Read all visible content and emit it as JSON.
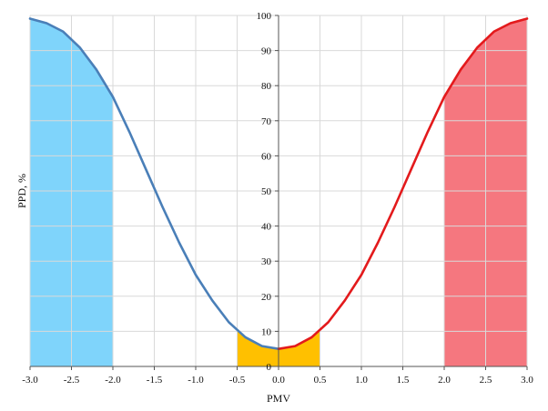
{
  "chart_data": {
    "type": "line",
    "title": "",
    "xlabel": "PMV",
    "ylabel": "PPD, %",
    "xlim": [
      -3.0,
      3.0
    ],
    "ylim": [
      0,
      100
    ],
    "x_ticks": [
      "-3.0",
      "-2.5",
      "-2.0",
      "-1.5",
      "-1.0",
      "-0.5",
      "0.0",
      "0.5",
      "1.0",
      "1.5",
      "2.0",
      "2.5",
      "3.0"
    ],
    "y_ticks": [
      "0",
      "10",
      "20",
      "30",
      "40",
      "50",
      "60",
      "70",
      "80",
      "90",
      "100"
    ],
    "grid": true,
    "legend": "none",
    "series": [
      {
        "color": "#4a7fb8",
        "x": [
          -3.0,
          -2.8,
          -2.6,
          -2.4,
          -2.2,
          -2.0,
          -1.8,
          -1.6,
          -1.4,
          -1.2,
          -1.0,
          -0.8,
          -0.6,
          -0.4,
          -0.2,
          0.0
        ],
        "y": [
          99.1,
          97.8,
          95.4,
          90.9,
          84.6,
          76.8,
          66.8,
          56.1,
          45.4,
          35.3,
          26.1,
          18.8,
          12.6,
          8.3,
          5.8,
          5.0
        ]
      },
      {
        "color": "#e31a1c",
        "x": [
          0.0,
          0.2,
          0.4,
          0.6,
          0.8,
          1.0,
          1.2,
          1.4,
          1.6,
          1.8,
          2.0,
          2.2,
          2.4,
          2.6,
          2.8,
          3.0
        ],
        "y": [
          5.0,
          5.8,
          8.3,
          12.6,
          18.8,
          26.1,
          35.3,
          45.4,
          56.1,
          66.8,
          76.8,
          84.6,
          90.9,
          95.4,
          97.8,
          99.1
        ]
      }
    ],
    "bands": [
      {
        "x_from": -3.0,
        "x_to": -2.0,
        "color": "#7fd4fb"
      },
      {
        "x_from": -0.5,
        "x_to": 0.5,
        "color": "#ffc000"
      },
      {
        "x_from": 2.0,
        "x_to": 3.0,
        "color": "#f5777f"
      }
    ]
  }
}
